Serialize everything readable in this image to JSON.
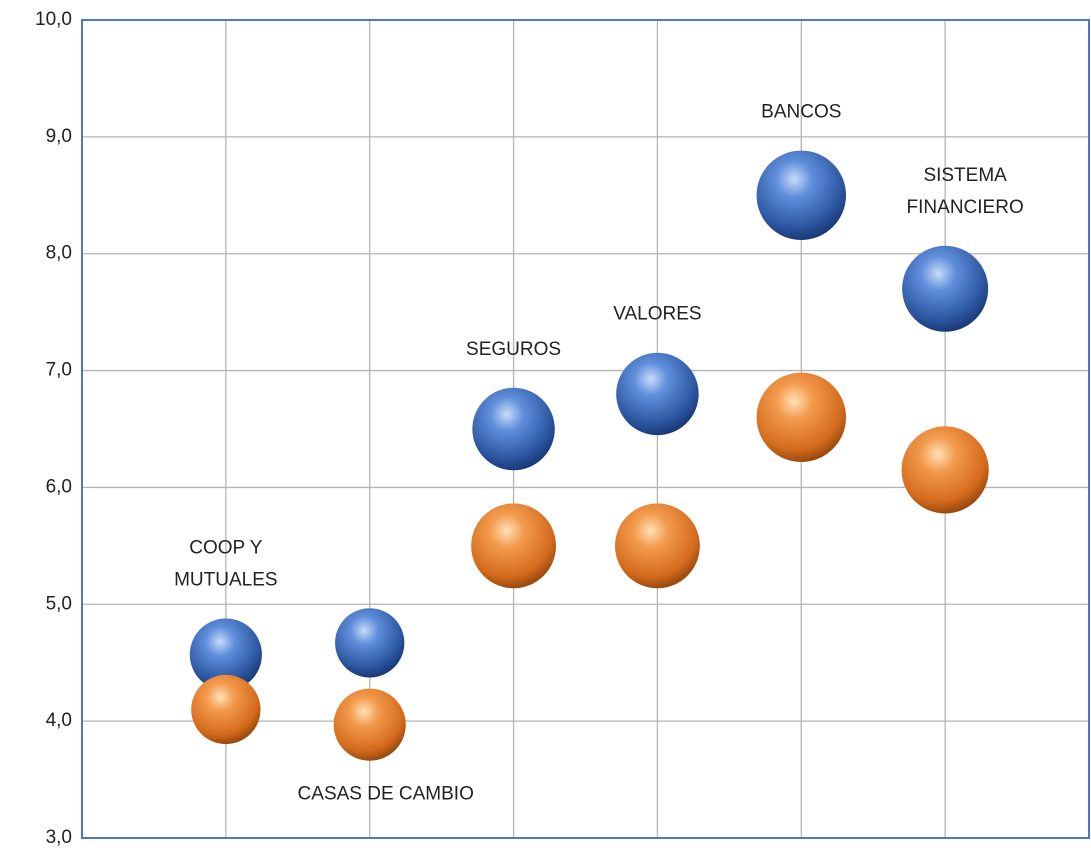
{
  "chart_data": {
    "type": "bubble",
    "categories": [
      [
        "COOP Y",
        "MUTUALES"
      ],
      [
        "CASAS DE CAMBIO"
      ],
      [
        "SEGUROS"
      ],
      [
        "VALORES"
      ],
      [
        "BANCOS"
      ],
      [
        "SISTEMA",
        "FINANCIERO"
      ]
    ],
    "x": [
      1,
      2,
      3,
      4,
      5,
      6
    ],
    "xlim": [
      0,
      7
    ],
    "ylim": [
      3,
      10
    ],
    "yticks": [
      {
        "value": 3,
        "label": "3,0"
      },
      {
        "value": 4,
        "label": "4,0"
      },
      {
        "value": 5,
        "label": "5,0"
      },
      {
        "value": 6,
        "label": "6,0"
      },
      {
        "value": 7,
        "label": "7,0"
      },
      {
        "value": 8,
        "label": "8,0"
      },
      {
        "value": 9,
        "label": "9,0"
      },
      {
        "value": 10,
        "label": "10,0"
      }
    ],
    "grid": true,
    "series": [
      {
        "color": "#3a6cc4",
        "values": [
          4.57,
          4.67,
          6.5,
          6.8,
          8.5,
          7.7
        ],
        "sizes": [
          13,
          12,
          17,
          17,
          20,
          18.5
        ]
      },
      {
        "color": "#e8782a",
        "values": [
          4.1,
          3.97,
          5.5,
          5.5,
          6.6,
          6.15
        ],
        "sizes": [
          12,
          13,
          18,
          18,
          20,
          19
        ]
      }
    ]
  }
}
